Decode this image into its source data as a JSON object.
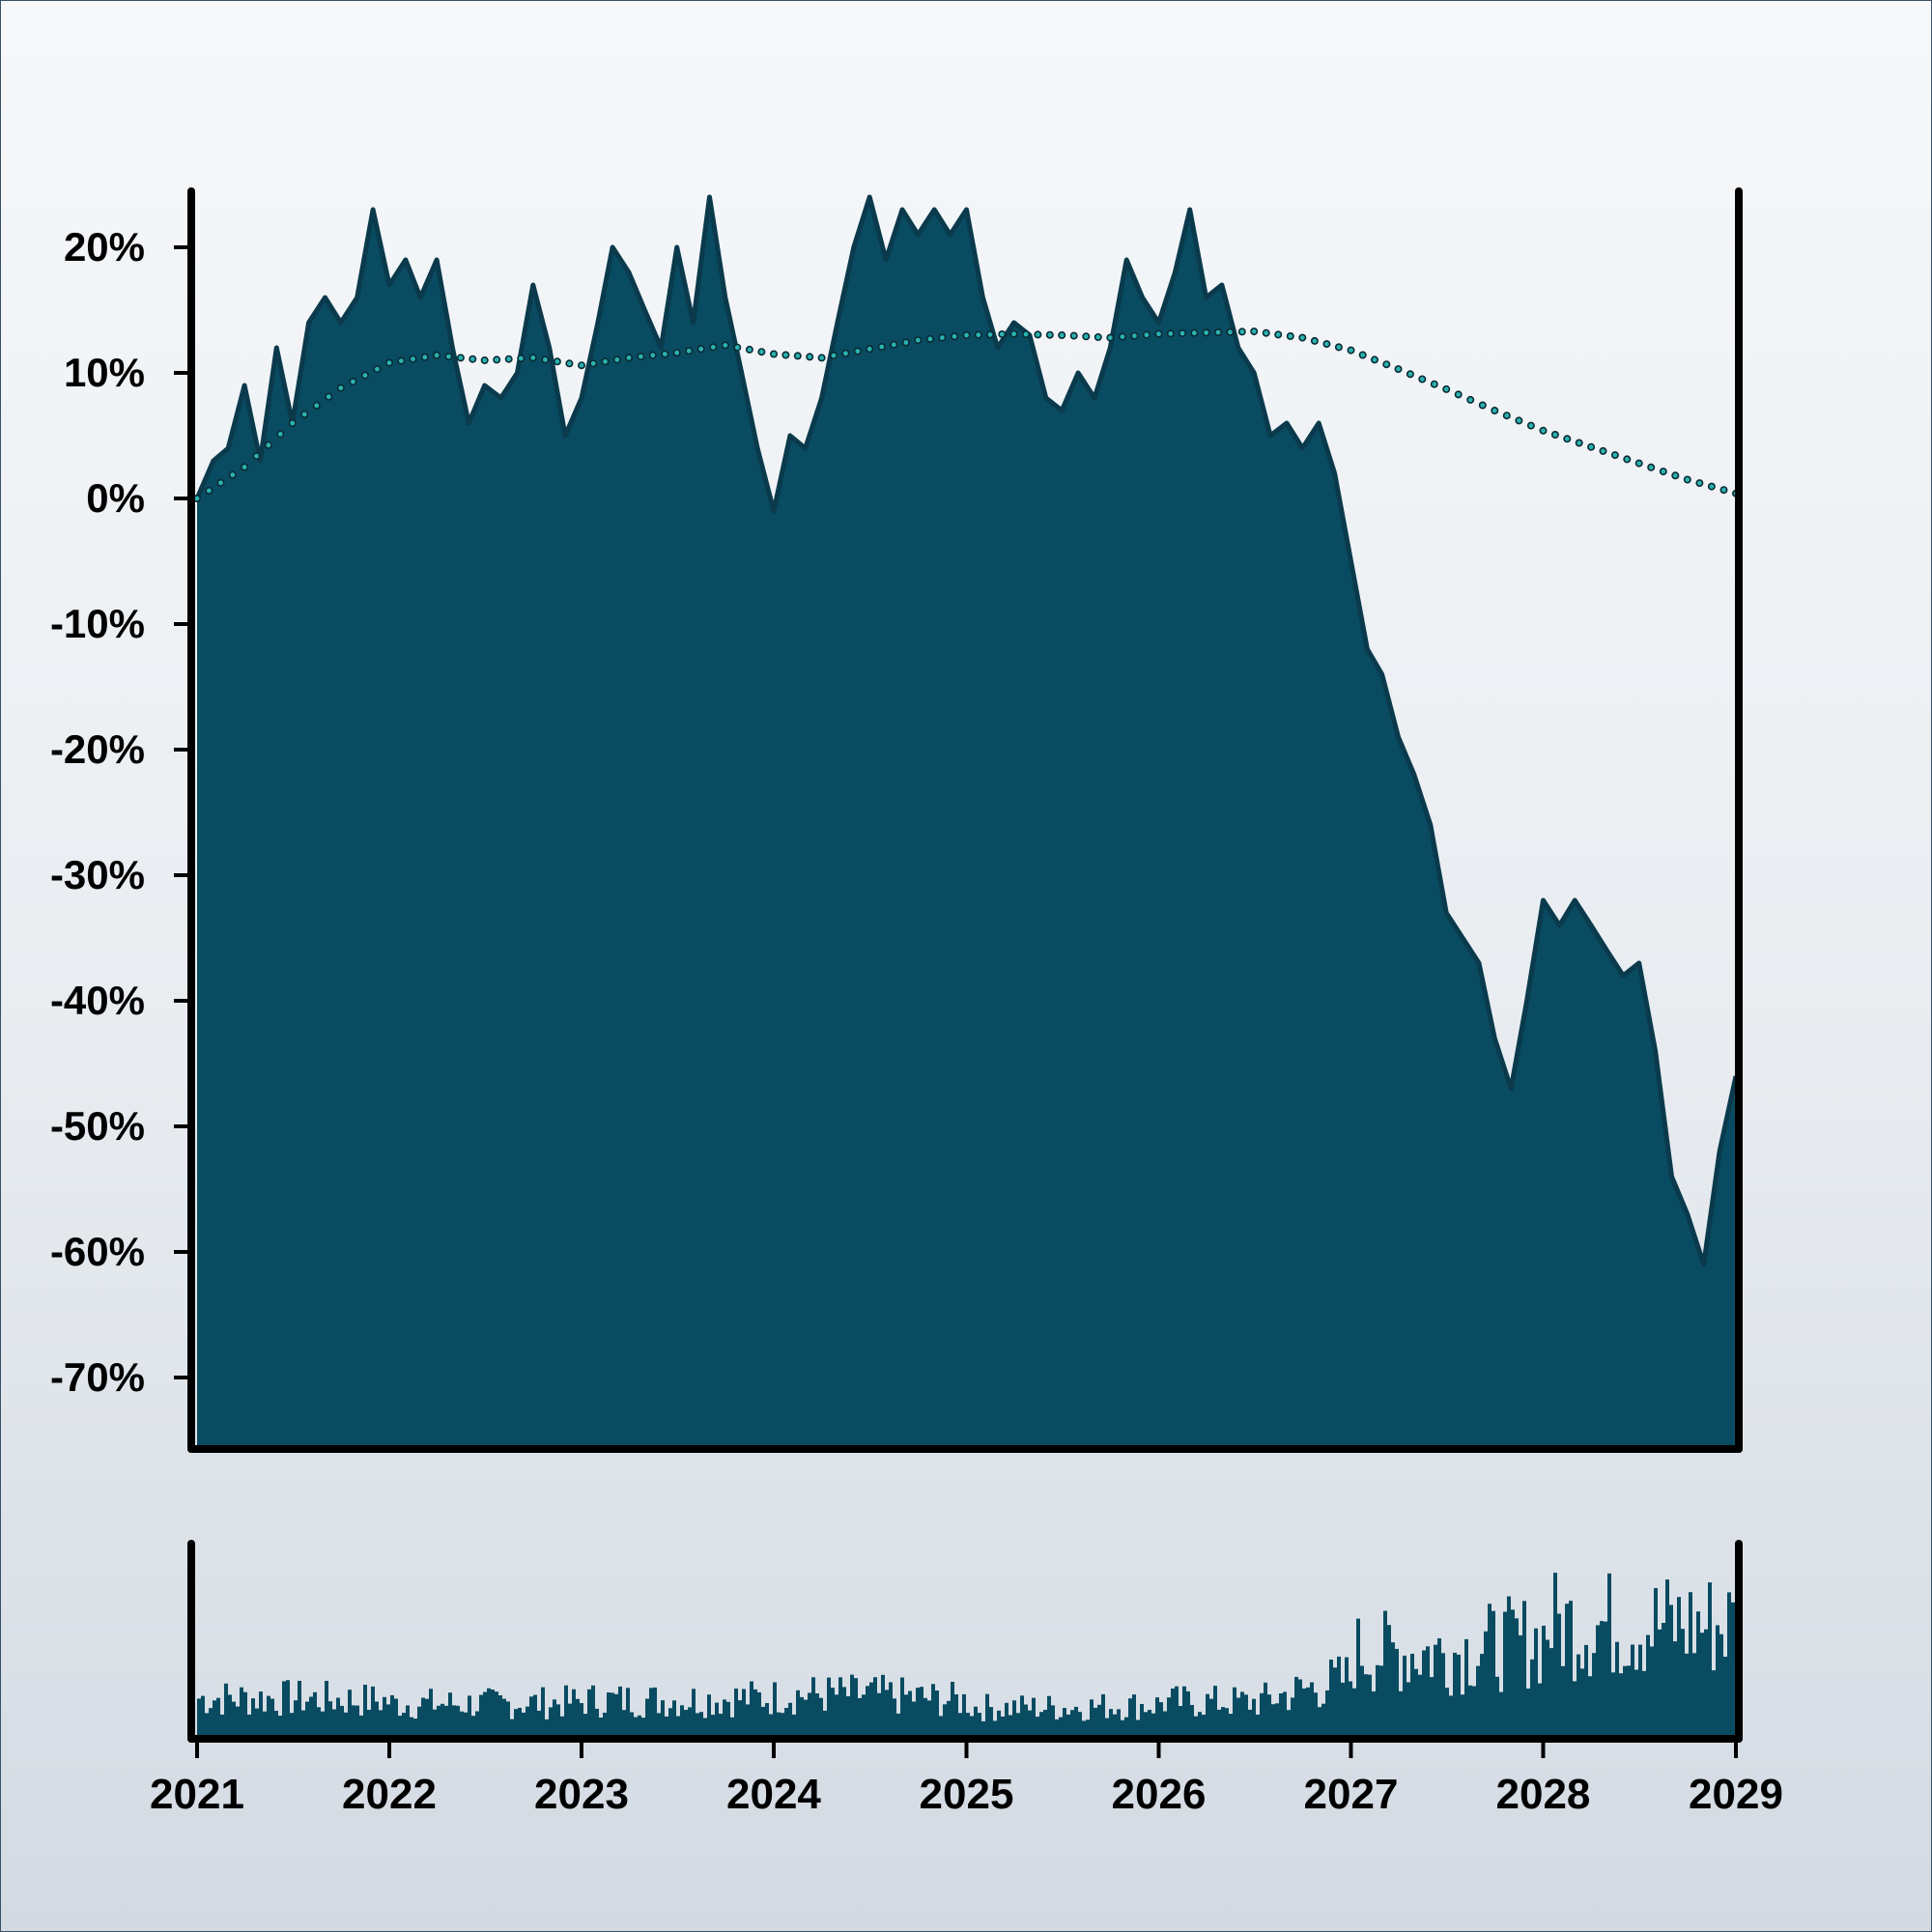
{
  "chart_data": [
    {
      "type": "area",
      "x_axis": {
        "type": "date",
        "range": [
          "2021-01-01",
          "2029-01-01"
        ]
      },
      "y_axis": {
        "range": [
          -75,
          25
        ],
        "unit": "%",
        "tick_values": [
          20,
          10,
          0,
          -10,
          -20,
          -30,
          -40,
          -50,
          -60,
          -70
        ],
        "tick_labels": [
          "20%",
          "10%",
          "0%",
          "-10%",
          "-20%",
          "-30%",
          "-40%",
          "-50%",
          "-60%",
          "-70%"
        ]
      },
      "grid": false,
      "colors": {
        "area": "#094b61",
        "area_outline": "#0a3a4c",
        "trend_fill": "#2ab3b1",
        "trend_stroke": "#0b2a33"
      },
      "series": [
        {
          "kind": "area",
          "points": [
            [
              "2021-01-01",
              0
            ],
            [
              "2021-02-01",
              3
            ],
            [
              "2021-03-01",
              4
            ],
            [
              "2021-04-01",
              9
            ],
            [
              "2021-05-01",
              3
            ],
            [
              "2021-06-01",
              12
            ],
            [
              "2021-07-01",
              6
            ],
            [
              "2021-08-01",
              14
            ],
            [
              "2021-09-01",
              16
            ],
            [
              "2021-10-01",
              14
            ],
            [
              "2021-11-01",
              16
            ],
            [
              "2021-12-01",
              23
            ],
            [
              "2022-01-01",
              17
            ],
            [
              "2022-02-01",
              19
            ],
            [
              "2022-03-01",
              16
            ],
            [
              "2022-04-01",
              19
            ],
            [
              "2022-05-01",
              12
            ],
            [
              "2022-06-01",
              6
            ],
            [
              "2022-07-01",
              9
            ],
            [
              "2022-08-01",
              8
            ],
            [
              "2022-09-01",
              10
            ],
            [
              "2022-10-01",
              17
            ],
            [
              "2022-11-01",
              12
            ],
            [
              "2022-12-01",
              5
            ],
            [
              "2023-01-01",
              8
            ],
            [
              "2023-02-01",
              14
            ],
            [
              "2023-03-01",
              20
            ],
            [
              "2023-04-01",
              18
            ],
            [
              "2023-05-01",
              15
            ],
            [
              "2023-06-01",
              12
            ],
            [
              "2023-07-01",
              20
            ],
            [
              "2023-08-01",
              14
            ],
            [
              "2023-09-01",
              24
            ],
            [
              "2023-10-01",
              16
            ],
            [
              "2023-11-01",
              10
            ],
            [
              "2023-12-01",
              4
            ],
            [
              "2024-01-01",
              -1
            ],
            [
              "2024-02-01",
              5
            ],
            [
              "2024-03-01",
              4
            ],
            [
              "2024-04-01",
              8
            ],
            [
              "2024-05-01",
              14
            ],
            [
              "2024-06-01",
              20
            ],
            [
              "2024-07-01",
              24
            ],
            [
              "2024-08-01",
              19
            ],
            [
              "2024-09-01",
              23
            ],
            [
              "2024-10-01",
              21
            ],
            [
              "2024-11-01",
              23
            ],
            [
              "2024-12-01",
              21
            ],
            [
              "2025-01-01",
              23
            ],
            [
              "2025-02-01",
              16
            ],
            [
              "2025-03-01",
              12
            ],
            [
              "2025-04-01",
              14
            ],
            [
              "2025-05-01",
              13
            ],
            [
              "2025-06-01",
              8
            ],
            [
              "2025-07-01",
              7
            ],
            [
              "2025-08-01",
              10
            ],
            [
              "2025-09-01",
              8
            ],
            [
              "2025-10-01",
              12
            ],
            [
              "2025-11-01",
              19
            ],
            [
              "2025-12-01",
              16
            ],
            [
              "2026-01-01",
              14
            ],
            [
              "2026-02-01",
              18
            ],
            [
              "2026-03-01",
              23
            ],
            [
              "2026-04-01",
              16
            ],
            [
              "2026-05-01",
              17
            ],
            [
              "2026-06-01",
              12
            ],
            [
              "2026-07-01",
              10
            ],
            [
              "2026-08-01",
              5
            ],
            [
              "2026-09-01",
              6
            ],
            [
              "2026-10-01",
              4
            ],
            [
              "2026-11-01",
              6
            ],
            [
              "2026-12-01",
              2
            ],
            [
              "2027-01-01",
              -5
            ],
            [
              "2027-02-01",
              -12
            ],
            [
              "2027-03-01",
              -14
            ],
            [
              "2027-04-01",
              -19
            ],
            [
              "2027-05-01",
              -22
            ],
            [
              "2027-06-01",
              -26
            ],
            [
              "2027-07-01",
              -33
            ],
            [
              "2027-08-01",
              -35
            ],
            [
              "2027-09-01",
              -37
            ],
            [
              "2027-10-01",
              -43
            ],
            [
              "2027-11-01",
              -47
            ],
            [
              "2027-12-01",
              -40
            ],
            [
              "2028-01-01",
              -32
            ],
            [
              "2028-02-01",
              -34
            ],
            [
              "2028-03-01",
              -32
            ],
            [
              "2028-04-01",
              -34
            ],
            [
              "2028-05-01",
              -36
            ],
            [
              "2028-06-01",
              -38
            ],
            [
              "2028-07-01",
              -37
            ],
            [
              "2028-08-01",
              -44
            ],
            [
              "2028-09-01",
              -54
            ],
            [
              "2028-10-01",
              -57
            ],
            [
              "2028-11-01",
              -61
            ],
            [
              "2028-12-01",
              -52
            ],
            [
              "2029-01-01",
              -46
            ]
          ]
        },
        {
          "kind": "trend-dots",
          "points": [
            [
              "2021-01-01",
              0
            ],
            [
              "2021-04-01",
              2.5
            ],
            [
              "2021-07-01",
              6
            ],
            [
              "2021-10-01",
              8.8
            ],
            [
              "2022-01-01",
              10.8
            ],
            [
              "2022-04-01",
              11.4
            ],
            [
              "2022-07-01",
              11
            ],
            [
              "2022-10-01",
              11.2
            ],
            [
              "2023-01-01",
              10.6
            ],
            [
              "2023-04-01",
              11.2
            ],
            [
              "2023-07-01",
              11.6
            ],
            [
              "2023-10-01",
              12.2
            ],
            [
              "2024-01-01",
              11.5
            ],
            [
              "2024-04-01",
              11.2
            ],
            [
              "2024-07-01",
              11.9
            ],
            [
              "2024-10-01",
              12.6
            ],
            [
              "2025-01-01",
              13
            ],
            [
              "2025-04-01",
              13.1
            ],
            [
              "2025-07-01",
              13
            ],
            [
              "2025-10-01",
              12.8
            ],
            [
              "2026-01-01",
              13.1
            ],
            [
              "2026-04-01",
              13.2
            ],
            [
              "2026-07-01",
              13.3
            ],
            [
              "2026-10-01",
              12.8
            ],
            [
              "2027-01-01",
              11.8
            ],
            [
              "2027-04-01",
              10.3
            ],
            [
              "2027-07-01",
              8.7
            ],
            [
              "2027-10-01",
              7
            ],
            [
              "2028-01-01",
              5.4
            ],
            [
              "2028-04-01",
              4.1
            ],
            [
              "2028-07-01",
              2.8
            ],
            [
              "2028-10-01",
              1.5
            ],
            [
              "2029-01-01",
              0.4
            ]
          ]
        }
      ]
    },
    {
      "type": "bar",
      "x_axis": {
        "type": "date",
        "range": [
          "2021-01-01",
          "2029-01-01"
        ],
        "tick_labels": [
          "2021",
          "2022",
          "2023",
          "2024",
          "2025",
          "2026",
          "2027",
          "2028",
          "2029"
        ]
      },
      "y_axis": {
        "range": [
          0,
          1
        ],
        "labels_shown": false
      },
      "colors": {
        "bar": "#094b61"
      },
      "period_levels": [
        {
          "year": "2021",
          "level": 0.2
        },
        {
          "year": "2022",
          "level": 0.17
        },
        {
          "year": "2023",
          "level": 0.19
        },
        {
          "year": "2024",
          "level": 0.22
        },
        {
          "year": "2025",
          "level": 0.15
        },
        {
          "year": "2026",
          "level": 0.18
        },
        {
          "year": "2027",
          "level": 0.45
        },
        {
          "year": "2028",
          "level": 0.6
        }
      ]
    }
  ]
}
